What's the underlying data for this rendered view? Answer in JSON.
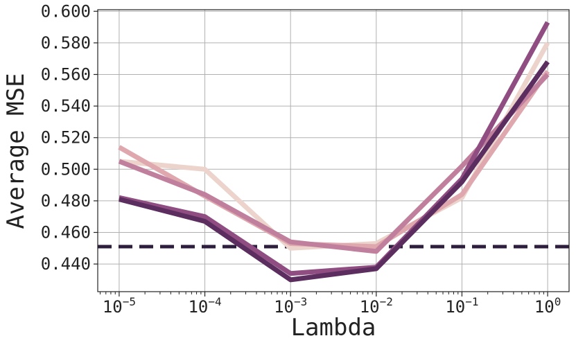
{
  "chart_data": {
    "type": "line",
    "xlabel": "Lambda",
    "ylabel": "Average MSE",
    "x_scale": "log",
    "x": [
      1e-05,
      0.0001,
      0.001,
      0.01,
      0.1,
      1
    ],
    "x_tick_labels": [
      {
        "base": "10",
        "exp": "−5"
      },
      {
        "base": "10",
        "exp": "−4"
      },
      {
        "base": "10",
        "exp": "−3"
      },
      {
        "base": "10",
        "exp": "−2"
      },
      {
        "base": "10",
        "exp": "−1"
      },
      {
        "base": "10",
        "exp": "0"
      }
    ],
    "ylim": [
      0.4225,
      0.601
    ],
    "y_ticks": [
      "0.440",
      "0.460",
      "0.480",
      "0.500",
      "0.520",
      "0.540",
      "0.560",
      "0.580",
      "0.600"
    ],
    "grid": true,
    "legend": "none",
    "series": [
      {
        "color": "#ecd3cb",
        "values": [
          0.505,
          0.5,
          0.45,
          0.453,
          0.482,
          0.58
        ]
      },
      {
        "color": "#dea8ae",
        "values": [
          0.514,
          0.483,
          0.453,
          0.451,
          0.484,
          0.562
        ]
      },
      {
        "color": "#c07f9c",
        "values": [
          0.505,
          0.484,
          0.454,
          0.448,
          0.502,
          0.56
        ]
      },
      {
        "color": "#8f4d82",
        "values": [
          0.482,
          0.47,
          0.434,
          0.438,
          0.494,
          0.593
        ]
      },
      {
        "color": "#5c2e60",
        "values": [
          0.481,
          0.467,
          0.43,
          0.437,
          0.492,
          0.568
        ]
      }
    ],
    "reference_line": {
      "y": 0.451,
      "style": "dashed",
      "color": "#2d1e3e"
    }
  }
}
